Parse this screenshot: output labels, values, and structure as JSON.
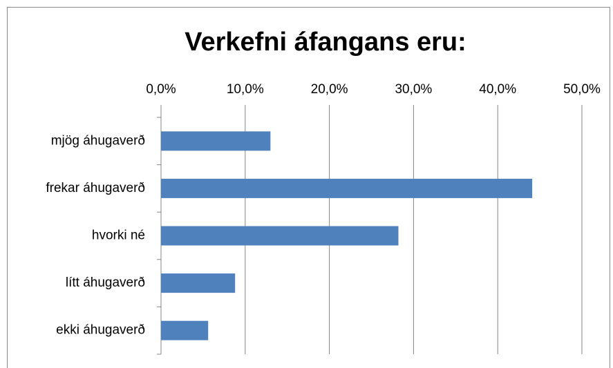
{
  "chart_data": {
    "type": "hbar",
    "title": "Verkefni áfangans eru:",
    "categories": [
      "mjög áhugaverð",
      "frekar áhugaverð",
      "hvorki né",
      "lítt áhugaverð",
      "ekki áhugaverð"
    ],
    "values": [
      13.0,
      44.1,
      28.2,
      8.8,
      5.6
    ],
    "color": "#4f81bd",
    "xlim": [
      0,
      50
    ],
    "xticks": [
      {
        "value": 0,
        "label": "0,0%"
      },
      {
        "value": 10,
        "label": "10,0%"
      },
      {
        "value": 20,
        "label": "20,0%"
      },
      {
        "value": 30,
        "label": "30,0%"
      },
      {
        "value": 40,
        "label": "40,0%"
      },
      {
        "value": 50,
        "label": "50,0%"
      }
    ],
    "grid": true
  }
}
